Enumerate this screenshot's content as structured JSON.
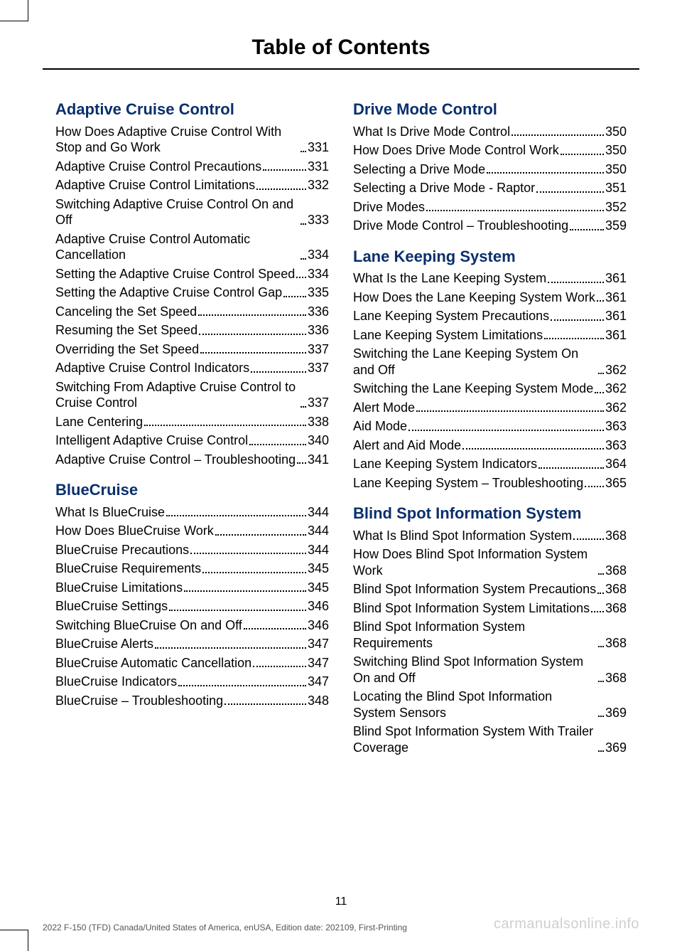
{
  "header": {
    "title": "Table of Contents"
  },
  "page_number": "11",
  "footer_left": "2022 F-150 (TFD) Canada/United States of America, enUSA, Edition date: 202109, First-Printing",
  "footer_right": "carmanualsonline.info",
  "colors": {
    "section_title": "#0a2f6c",
    "text": "#000000",
    "footer_text": "#555555",
    "watermark": "#cfcfcf",
    "background": "#ffffff"
  },
  "typography": {
    "header_size_pt": 30,
    "section_size_pt": 22,
    "body_size_pt": 18,
    "footer_size_pt": 12
  },
  "sections": [
    {
      "title": "Adaptive Cruise Control",
      "entries": [
        {
          "label": "How Does Adaptive Cruise Control With Stop and Go Work",
          "page": "331"
        },
        {
          "label": "Adaptive Cruise Control Precautions",
          "page": "331"
        },
        {
          "label": "Adaptive Cruise Control Limitations",
          "page": "332"
        },
        {
          "label": "Switching Adaptive Cruise Control On and Off",
          "page": "333"
        },
        {
          "label": "Adaptive Cruise Control Automatic Cancellation",
          "page": "334"
        },
        {
          "label": "Setting the Adaptive Cruise Control Speed",
          "page": "334"
        },
        {
          "label": "Setting the Adaptive Cruise Control Gap",
          "page": "335"
        },
        {
          "label": "Canceling the Set Speed",
          "page": "336"
        },
        {
          "label": "Resuming the Set Speed",
          "page": "336"
        },
        {
          "label": "Overriding the Set Speed",
          "page": "337"
        },
        {
          "label": "Adaptive Cruise Control Indicators",
          "page": "337"
        },
        {
          "label": "Switching From Adaptive Cruise Control to Cruise Control",
          "page": "337"
        },
        {
          "label": "Lane Centering",
          "page": "338"
        },
        {
          "label": "Intelligent Adaptive Cruise Control",
          "page": "340"
        },
        {
          "label": "Adaptive Cruise Control – Troubleshooting",
          "page": "341"
        }
      ]
    },
    {
      "title": "BlueCruise",
      "entries": [
        {
          "label": "What Is BlueCruise",
          "page": "344"
        },
        {
          "label": "How Does BlueCruise Work",
          "page": "344"
        },
        {
          "label": "BlueCruise Precautions",
          "page": "344"
        },
        {
          "label": "BlueCruise Requirements",
          "page": "345"
        },
        {
          "label": "BlueCruise Limitations",
          "page": "345"
        },
        {
          "label": "BlueCruise Settings",
          "page": "346"
        },
        {
          "label": "Switching BlueCruise On and Off",
          "page": "346"
        },
        {
          "label": "BlueCruise Alerts",
          "page": "347"
        },
        {
          "label": "BlueCruise Automatic Cancellation",
          "page": "347"
        },
        {
          "label": "BlueCruise Indicators",
          "page": "347"
        },
        {
          "label": "BlueCruise – Troubleshooting",
          "page": "348"
        }
      ]
    },
    {
      "title": "Drive Mode Control",
      "entries": [
        {
          "label": "What Is Drive Mode Control",
          "page": "350"
        },
        {
          "label": "How Does Drive Mode Control Work",
          "page": "350"
        },
        {
          "label": "Selecting a Drive Mode",
          "page": "350"
        },
        {
          "label": "Selecting a Drive Mode - Raptor",
          "page": "351"
        },
        {
          "label": "Drive Modes",
          "page": "352"
        },
        {
          "label": "Drive Mode Control – Troubleshooting",
          "page": "359"
        }
      ]
    },
    {
      "title": "Lane Keeping System",
      "entries": [
        {
          "label": "What Is the Lane Keeping System",
          "page": "361"
        },
        {
          "label": "How Does the Lane Keeping System Work",
          "page": "361"
        },
        {
          "label": "Lane Keeping System Precautions",
          "page": "361"
        },
        {
          "label": "Lane Keeping System Limitations",
          "page": "361"
        },
        {
          "label": "Switching the Lane Keeping System On and Off",
          "page": "362"
        },
        {
          "label": "Switching the Lane Keeping System Mode",
          "page": "362"
        },
        {
          "label": "Alert Mode",
          "page": "362"
        },
        {
          "label": "Aid Mode",
          "page": "363"
        },
        {
          "label": "Alert and Aid Mode",
          "page": "363"
        },
        {
          "label": "Lane Keeping System Indicators",
          "page": "364"
        },
        {
          "label": "Lane Keeping System – Troubleshooting",
          "page": "365"
        }
      ]
    },
    {
      "title": "Blind Spot Information System",
      "entries": [
        {
          "label": "What Is Blind Spot Information System",
          "page": "368"
        },
        {
          "label": "How Does Blind Spot Information System Work",
          "page": "368"
        },
        {
          "label": "Blind Spot Information System Precautions",
          "page": "368"
        },
        {
          "label": "Blind Spot Information System Limitations",
          "page": "368"
        },
        {
          "label": "Blind Spot Information System Requirements",
          "page": "368"
        },
        {
          "label": "Switching Blind Spot Information System On and Off",
          "page": "368"
        },
        {
          "label": "Locating the Blind Spot Information System Sensors",
          "page": "369"
        },
        {
          "label": "Blind Spot Information System With Trailer Coverage",
          "page": "369"
        }
      ]
    }
  ]
}
